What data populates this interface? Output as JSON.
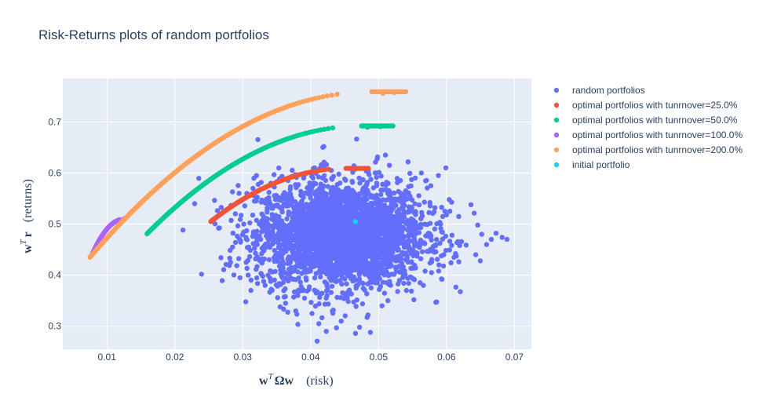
{
  "chart_data": {
    "type": "scatter",
    "title": "Risk-Returns plots of random portfolios",
    "xlabel": "wᵀΩw (risk)",
    "ylabel": "wᵀr (returns)",
    "xlabel_parts": {
      "math": "w",
      "sup": "T",
      "math2": "Ωw",
      "text": "(risk)"
    },
    "ylabel_parts": {
      "math": "w",
      "sup": "T",
      "math2": "r",
      "text": "(returns)"
    },
    "xlim": [
      0.0035,
      0.0725
    ],
    "ylim": [
      0.255,
      0.785
    ],
    "xticks": [
      0.01,
      0.02,
      0.03,
      0.04,
      0.05,
      0.06,
      0.07
    ],
    "yticks": [
      0.3,
      0.4,
      0.5,
      0.6,
      0.7
    ],
    "xtick_labels": [
      "0.01",
      "0.02",
      "0.03",
      "0.04",
      "0.05",
      "0.06",
      "0.07"
    ],
    "ytick_labels": [
      "0.3",
      "0.4",
      "0.5",
      "0.6",
      "0.7"
    ],
    "grid": true,
    "legend_position": "top-right",
    "series": [
      {
        "name": "random portfolios",
        "color": "#636efa",
        "cloud": {
          "center": [
            0.0445,
            0.48
          ],
          "std": [
            0.0062,
            0.052
          ],
          "count": 3000
        },
        "extra_points": [
          [
            0.0689,
            0.47
          ],
          [
            0.0682,
            0.474
          ],
          [
            0.0673,
            0.482
          ],
          [
            0.0666,
            0.47
          ],
          [
            0.0659,
            0.46
          ],
          [
            0.0652,
            0.48
          ],
          [
            0.0643,
            0.44
          ],
          [
            0.0646,
            0.498
          ],
          [
            0.0636,
            0.538
          ],
          [
            0.0618,
            0.515
          ],
          [
            0.0604,
            0.548
          ],
          [
            0.0605,
            0.525
          ],
          [
            0.0599,
            0.61
          ],
          [
            0.0588,
            0.595
          ],
          [
            0.0577,
            0.575
          ],
          [
            0.0563,
            0.6
          ],
          [
            0.0554,
            0.59
          ],
          [
            0.051,
            0.635
          ],
          [
            0.0498,
            0.628
          ],
          [
            0.0488,
            0.288
          ],
          [
            0.0472,
            0.298
          ],
          [
            0.0466,
            0.286
          ],
          [
            0.0445,
            0.31
          ],
          [
            0.0438,
            0.297
          ],
          [
            0.0423,
            0.29
          ],
          [
            0.0412,
            0.305
          ],
          [
            0.0402,
            0.325
          ],
          [
            0.0378,
            0.33
          ],
          [
            0.0355,
            0.338
          ],
          [
            0.0333,
            0.38
          ],
          [
            0.0312,
            0.37
          ],
          [
            0.0305,
            0.425
          ],
          [
            0.0282,
            0.425
          ],
          [
            0.0289,
            0.52
          ],
          [
            0.0297,
            0.545
          ],
          [
            0.0306,
            0.56
          ],
          [
            0.0315,
            0.57
          ],
          [
            0.0328,
            0.547
          ],
          [
            0.0339,
            0.545
          ],
          [
            0.0285,
            0.455
          ],
          [
            0.0296,
            0.395
          ],
          [
            0.0308,
            0.4
          ],
          [
            0.0566,
            0.38
          ],
          [
            0.0552,
            0.352
          ],
          [
            0.0541,
            0.37
          ],
          [
            0.0528,
            0.368
          ],
          [
            0.0505,
            0.34
          ],
          [
            0.0363,
            0.345
          ],
          [
            0.0391,
            0.355
          ],
          [
            0.0432,
            0.33
          ],
          [
            0.0582,
            0.445
          ],
          [
            0.0596,
            0.44
          ],
          [
            0.0611,
            0.435
          ],
          [
            0.0589,
            0.42
          ],
          [
            0.0578,
            0.405
          ]
        ]
      },
      {
        "name": "optimal portfolios with tunrnover=25.0%",
        "color": "#ef553b",
        "frontier": {
          "x_min": 0.0253,
          "x_max": 0.0485,
          "y_min": 0.505,
          "y_max": 0.609,
          "x_plateau": 0.0452,
          "count": 110
        }
      },
      {
        "name": "optimal portfolios with tunrnover=50.0%",
        "color": "#00cc96",
        "frontier": {
          "x_min": 0.0159,
          "x_max": 0.0521,
          "y_min": 0.481,
          "y_max": 0.692,
          "x_plateau": 0.0475,
          "count": 150
        }
      },
      {
        "name": "optimal portfolios with tunrnover=100.0%",
        "color": "#ab63fa",
        "frontier": {
          "x_min": 0.0078,
          "x_max": 0.0125,
          "y_min": 0.44,
          "y_max": 0.51,
          "x_plateau": 0.0125,
          "count": 45
        }
      },
      {
        "name": "optimal portfolios with tunrnover=200.0%",
        "color": "#ffa15a",
        "frontier": {
          "x_min": 0.0075,
          "x_max": 0.054,
          "y_min": 0.435,
          "y_max": 0.759,
          "x_plateau": 0.049,
          "count": 180
        }
      },
      {
        "name": "initial portfolio",
        "color": "#19d3f3",
        "points": [
          [
            0.0466,
            0.505
          ]
        ]
      }
    ]
  }
}
